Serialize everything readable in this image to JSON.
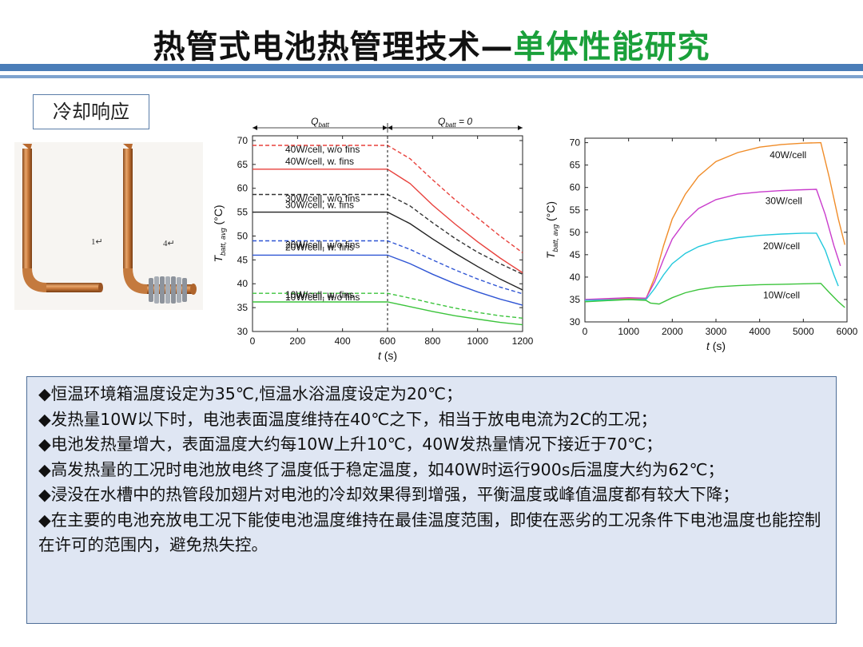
{
  "header": {
    "title_main": "热管式电池热管理技术—",
    "title_sub": "单体性能研究"
  },
  "section_label": "冷却响应",
  "photos": {
    "label_1": "1↵",
    "label_4": "4↵"
  },
  "chart_data": [
    {
      "type": "line",
      "xlabel_var": "t",
      "xlabel_unit": "(s)",
      "ylabel_var": "T",
      "ylabel_sub": "batt, avg",
      "ylabel_unit": "(°C)",
      "xlim": [
        0,
        1200
      ],
      "ylim": [
        30,
        71
      ],
      "xticks": [
        0,
        200,
        400,
        600,
        800,
        1000,
        1200
      ],
      "yticks": [
        30,
        35,
        40,
        45,
        50,
        55,
        60,
        65,
        70
      ],
      "phase_labels": [
        {
          "var": "Q",
          "sub": "batt",
          "suffix": ""
        },
        {
          "var": "Q",
          "sub": "batt",
          "suffix": " = 0"
        }
      ],
      "divider_x": 600,
      "series": [
        {
          "name": "40W/cell, w/o fins",
          "color": "#e8413c",
          "dashed": true,
          "x": [
            0,
            600,
            700,
            800,
            900,
            1000,
            1100,
            1200
          ],
          "y": [
            69,
            69,
            66.2,
            61.8,
            57.6,
            53.8,
            50.0,
            46.5
          ]
        },
        {
          "name": "40W/cell, w. fins",
          "color": "#e8413c",
          "dashed": false,
          "x": [
            0,
            600,
            700,
            800,
            900,
            1000,
            1100,
            1200
          ],
          "y": [
            64,
            64,
            61.0,
            56.5,
            52.5,
            48.8,
            45.4,
            42.3
          ]
        },
        {
          "name": "30W/cell, w/o fins",
          "color": "#333333",
          "dashed": true,
          "x": [
            0,
            600,
            700,
            800,
            900,
            1000,
            1100,
            1200
          ],
          "y": [
            58.7,
            58.7,
            56.3,
            52.8,
            49.5,
            46.6,
            44.2,
            42.0
          ]
        },
        {
          "name": "30W/cell, w. fins",
          "color": "#222222",
          "dashed": false,
          "x": [
            0,
            600,
            700,
            800,
            900,
            1000,
            1100,
            1200
          ],
          "y": [
            55,
            55,
            52.6,
            49.4,
            46.4,
            43.6,
            41.0,
            38.7
          ]
        },
        {
          "name": "20W/cell, w/o fins",
          "color": "#2f55d4",
          "dashed": true,
          "x": [
            0,
            600,
            700,
            800,
            900,
            1000,
            1100,
            1200
          ],
          "y": [
            49,
            49,
            47.2,
            45.0,
            42.9,
            41.0,
            39.3,
            37.9
          ]
        },
        {
          "name": "20W/cell, w. fins",
          "color": "#2f55d4",
          "dashed": false,
          "x": [
            0,
            600,
            700,
            800,
            900,
            1000,
            1100,
            1200
          ],
          "y": [
            46,
            46,
            44.2,
            42.0,
            40.0,
            38.3,
            36.8,
            35.5
          ]
        },
        {
          "name": "10W/cell, w/o fins",
          "color": "#3cc43c",
          "dashed": true,
          "x": [
            0,
            600,
            700,
            800,
            900,
            1000,
            1100,
            1200
          ],
          "y": [
            38,
            38,
            37.0,
            35.9,
            34.9,
            34.0,
            33.3,
            32.8
          ]
        },
        {
          "name": "10W/cell, w. fins",
          "color": "#3cc43c",
          "dashed": false,
          "x": [
            0,
            600,
            700,
            800,
            900,
            1000,
            1100,
            1200
          ],
          "y": [
            36.2,
            36.2,
            35.2,
            34.2,
            33.3,
            32.6,
            31.9,
            31.4
          ]
        }
      ]
    },
    {
      "type": "line",
      "xlabel_var": "t",
      "xlabel_unit": "(s)",
      "ylabel_var": "T",
      "ylabel_sub": "batt, avg",
      "ylabel_unit": "(°C)",
      "xlim": [
        0,
        6000
      ],
      "ylim": [
        30,
        71
      ],
      "xticks": [
        0,
        1000,
        2000,
        3000,
        4000,
        5000,
        6000
      ],
      "yticks": [
        30,
        35,
        40,
        45,
        50,
        55,
        60,
        65,
        70
      ],
      "series": [
        {
          "name": "40W/cell",
          "color": "#f08c28",
          "x": [
            0,
            1000,
            1400,
            1600,
            1800,
            2000,
            2300,
            2600,
            3000,
            3500,
            4000,
            4500,
            5000,
            5400,
            5600,
            5800,
            5950
          ],
          "y": [
            34.8,
            35.2,
            35.2,
            40,
            47,
            53,
            58.5,
            62.5,
            65.8,
            67.8,
            69.0,
            69.6,
            69.9,
            70.0,
            62.0,
            53.0,
            47.2
          ]
        },
        {
          "name": "30W/cell",
          "color": "#c93ccc",
          "x": [
            0,
            1000,
            1400,
            1600,
            1800,
            2000,
            2300,
            2600,
            3000,
            3500,
            4000,
            4500,
            5000,
            5300,
            5500,
            5700,
            5850
          ],
          "y": [
            35.0,
            35.4,
            35.3,
            39,
            44,
            48.5,
            52.5,
            55.3,
            57.3,
            58.5,
            59.0,
            59.3,
            59.5,
            59.6,
            54.0,
            47.0,
            42.5
          ]
        },
        {
          "name": "20W/cell",
          "color": "#22c8dc",
          "x": [
            0,
            1000,
            1400,
            1600,
            1800,
            2000,
            2300,
            2600,
            3000,
            3500,
            4000,
            4500,
            5000,
            5300,
            5500,
            5700,
            5800
          ],
          "y": [
            34.8,
            35.0,
            35.0,
            37.5,
            40.5,
            43.0,
            45.3,
            46.8,
            48.0,
            48.8,
            49.3,
            49.6,
            49.8,
            49.8,
            46.0,
            40.5,
            38.0
          ]
        },
        {
          "name": "10W/cell",
          "color": "#3cc43c",
          "x": [
            0,
            1000,
            1400,
            1500,
            1700,
            2000,
            2300,
            2600,
            3000,
            3500,
            4000,
            4500,
            5000,
            5400,
            5600,
            5800,
            5950
          ],
          "y": [
            34.5,
            35.0,
            34.8,
            34.2,
            34.0,
            35.4,
            36.5,
            37.2,
            37.8,
            38.1,
            38.3,
            38.4,
            38.5,
            38.6,
            36.5,
            34.5,
            33.2
          ]
        }
      ]
    }
  ],
  "notes": [
    "◆恒温环境箱温度设定为35℃,恒温水浴温度设定为20℃；",
    "◆发热量10W以下时，电池表面温度维持在40℃之下，相当于放电电流为2C的工况；",
    "◆电池发热量增大，表面温度大约每10W上升10℃，40W发热量情况下接近于70℃；",
    "◆高发热量的工况时电池放电终了温度低于稳定温度，如40W时运行900s后温度大约为62℃；",
    "◆浸没在水槽中的热管段加翅片对电池的冷却效果得到增强，平衡温度或峰值温度都有较大下降；",
    "◆在主要的电池充放电工况下能使电池温度维持在最佳温度范围，即使在恶劣的工况条件下电池温度也能控制在许可的范围内，避免热失控。"
  ]
}
